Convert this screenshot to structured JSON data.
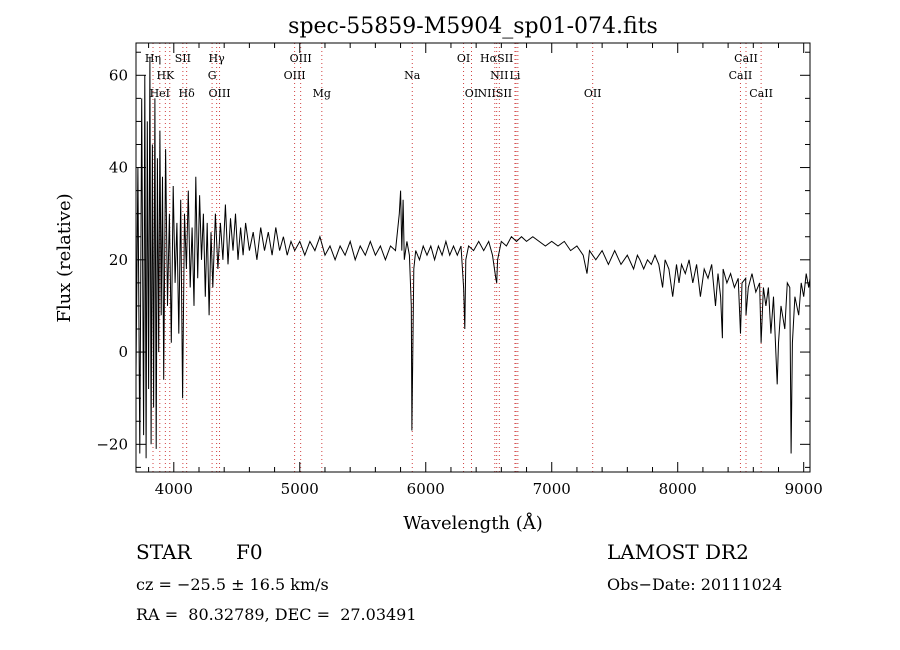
{
  "chart_data": {
    "type": "line",
    "title": "spec-55859-M5904_sp01-074.fits",
    "xlabel": "Wavelength (Å)",
    "ylabel": "Flux (relative)",
    "xlim": [
      3700,
      9050
    ],
    "ylim": [
      -26,
      67
    ],
    "x_ticks": [
      4000,
      5000,
      6000,
      7000,
      8000,
      9000
    ],
    "y_ticks": [
      -20,
      0,
      20,
      40,
      60
    ],
    "grid": false,
    "series": [
      {
        "points": [
          [
            3700,
            -5
          ],
          [
            3715,
            40
          ],
          [
            3730,
            -22
          ],
          [
            3745,
            55
          ],
          [
            3760,
            -18
          ],
          [
            3770,
            60
          ],
          [
            3780,
            -23
          ],
          [
            3790,
            50
          ],
          [
            3800,
            -8
          ],
          [
            3810,
            64
          ],
          [
            3820,
            -20
          ],
          [
            3830,
            45
          ],
          [
            3840,
            -12
          ],
          [
            3850,
            55
          ],
          [
            3860,
            -21
          ],
          [
            3870,
            42
          ],
          [
            3880,
            0
          ],
          [
            3890,
            48
          ],
          [
            3900,
            8
          ],
          [
            3910,
            38
          ],
          [
            3920,
            -6
          ],
          [
            3935,
            44
          ],
          [
            3950,
            10
          ],
          [
            3965,
            30
          ],
          [
            3980,
            2
          ],
          [
            3995,
            36
          ],
          [
            4010,
            15
          ],
          [
            4025,
            28
          ],
          [
            4040,
            4
          ],
          [
            4055,
            33
          ],
          [
            4070,
            -10
          ],
          [
            4085,
            30
          ],
          [
            4100,
            18
          ],
          [
            4115,
            35
          ],
          [
            4130,
            14
          ],
          [
            4145,
            27
          ],
          [
            4160,
            10
          ],
          [
            4175,
            38
          ],
          [
            4190,
            16
          ],
          [
            4205,
            34
          ],
          [
            4220,
            20
          ],
          [
            4235,
            30
          ],
          [
            4250,
            12
          ],
          [
            4265,
            28
          ],
          [
            4280,
            8
          ],
          [
            4295,
            26
          ],
          [
            4310,
            14
          ],
          [
            4330,
            30
          ],
          [
            4350,
            18
          ],
          [
            4370,
            28
          ],
          [
            4390,
            20
          ],
          [
            4410,
            32
          ],
          [
            4430,
            19
          ],
          [
            4450,
            29
          ],
          [
            4470,
            22
          ],
          [
            4490,
            30
          ],
          [
            4510,
            20
          ],
          [
            4530,
            27
          ],
          [
            4550,
            21
          ],
          [
            4570,
            28
          ],
          [
            4600,
            22
          ],
          [
            4630,
            26
          ],
          [
            4660,
            20
          ],
          [
            4690,
            27
          ],
          [
            4720,
            22
          ],
          [
            4750,
            26
          ],
          [
            4780,
            21
          ],
          [
            4810,
            27
          ],
          [
            4840,
            22
          ],
          [
            4870,
            25
          ],
          [
            4900,
            21
          ],
          [
            4930,
            24
          ],
          [
            4960,
            22
          ],
          [
            5000,
            24
          ],
          [
            5040,
            21
          ],
          [
            5080,
            24
          ],
          [
            5120,
            22
          ],
          [
            5160,
            25
          ],
          [
            5200,
            21
          ],
          [
            5240,
            23
          ],
          [
            5280,
            20
          ],
          [
            5320,
            23
          ],
          [
            5360,
            21
          ],
          [
            5400,
            24
          ],
          [
            5440,
            20
          ],
          [
            5480,
            23
          ],
          [
            5520,
            21
          ],
          [
            5560,
            24
          ],
          [
            5600,
            21
          ],
          [
            5640,
            23
          ],
          [
            5680,
            20
          ],
          [
            5720,
            23
          ],
          [
            5760,
            22
          ],
          [
            5790,
            30
          ],
          [
            5800,
            35
          ],
          [
            5810,
            22
          ],
          [
            5820,
            33
          ],
          [
            5830,
            20
          ],
          [
            5850,
            24
          ],
          [
            5870,
            21
          ],
          [
            5885,
            10
          ],
          [
            5890,
            -17
          ],
          [
            5896,
            -2
          ],
          [
            5905,
            18
          ],
          [
            5920,
            22
          ],
          [
            5950,
            20
          ],
          [
            5980,
            23
          ],
          [
            6010,
            21
          ],
          [
            6040,
            23
          ],
          [
            6070,
            20
          ],
          [
            6100,
            23
          ],
          [
            6130,
            21
          ],
          [
            6160,
            24
          ],
          [
            6190,
            21
          ],
          [
            6220,
            23
          ],
          [
            6250,
            21
          ],
          [
            6280,
            23
          ],
          [
            6300,
            14
          ],
          [
            6310,
            5
          ],
          [
            6318,
            20
          ],
          [
            6340,
            23
          ],
          [
            6380,
            22
          ],
          [
            6420,
            24
          ],
          [
            6460,
            22
          ],
          [
            6500,
            24
          ],
          [
            6530,
            21
          ],
          [
            6556,
            16
          ],
          [
            6563,
            15
          ],
          [
            6570,
            20
          ],
          [
            6600,
            24
          ],
          [
            6640,
            23
          ],
          [
            6680,
            25
          ],
          [
            6720,
            24
          ],
          [
            6760,
            25
          ],
          [
            6800,
            24
          ],
          [
            6850,
            25
          ],
          [
            6900,
            24
          ],
          [
            6950,
            23
          ],
          [
            7000,
            24
          ],
          [
            7050,
            23
          ],
          [
            7100,
            24
          ],
          [
            7150,
            22
          ],
          [
            7200,
            23
          ],
          [
            7250,
            21
          ],
          [
            7280,
            17
          ],
          [
            7300,
            22
          ],
          [
            7350,
            20
          ],
          [
            7400,
            22
          ],
          [
            7450,
            19
          ],
          [
            7500,
            22
          ],
          [
            7550,
            19
          ],
          [
            7600,
            21
          ],
          [
            7650,
            18
          ],
          [
            7680,
            21
          ],
          [
            7700,
            20
          ],
          [
            7730,
            18
          ],
          [
            7760,
            20
          ],
          [
            7790,
            19
          ],
          [
            7820,
            21
          ],
          [
            7850,
            19
          ],
          [
            7880,
            14
          ],
          [
            7900,
            20
          ],
          [
            7930,
            18
          ],
          [
            7960,
            12
          ],
          [
            7990,
            19
          ],
          [
            8010,
            15
          ],
          [
            8030,
            19
          ],
          [
            8060,
            17
          ],
          [
            8090,
            20
          ],
          [
            8120,
            15
          ],
          [
            8150,
            19
          ],
          [
            8180,
            12
          ],
          [
            8210,
            18
          ],
          [
            8240,
            16
          ],
          [
            8270,
            19
          ],
          [
            8300,
            10
          ],
          [
            8320,
            17
          ],
          [
            8340,
            12
          ],
          [
            8355,
            3
          ],
          [
            8360,
            18
          ],
          [
            8390,
            15
          ],
          [
            8420,
            17
          ],
          [
            8450,
            14
          ],
          [
            8480,
            16
          ],
          [
            8498,
            4
          ],
          [
            8510,
            15
          ],
          [
            8540,
            16
          ],
          [
            8542,
            8
          ],
          [
            8560,
            14
          ],
          [
            8590,
            17
          ],
          [
            8620,
            13
          ],
          [
            8650,
            15
          ],
          [
            8662,
            2
          ],
          [
            8680,
            14
          ],
          [
            8700,
            10
          ],
          [
            8720,
            14
          ],
          [
            8740,
            4
          ],
          [
            8760,
            12
          ],
          [
            8790,
            -7
          ],
          [
            8800,
            2
          ],
          [
            8820,
            10
          ],
          [
            8850,
            5
          ],
          [
            8870,
            15
          ],
          [
            8890,
            14
          ],
          [
            8900,
            -22
          ],
          [
            8910,
            2
          ],
          [
            8930,
            12
          ],
          [
            8960,
            8
          ],
          [
            8980,
            15
          ],
          [
            9000,
            12
          ],
          [
            9020,
            17
          ],
          [
            9040,
            14
          ],
          [
            9050,
            16
          ]
        ]
      }
    ],
    "line_markers": [
      {
        "label": "Hη",
        "wavelength": 3835,
        "row": 0
      },
      {
        "label": "HK",
        "wavelength": 3933,
        "row": 1
      },
      {
        "label": "HeI",
        "wavelength": 3889,
        "row": 2
      },
      {
        "label": "SII",
        "wavelength": 4072,
        "row": 0
      },
      {
        "label": "Hδ",
        "wavelength": 4102,
        "row": 2
      },
      {
        "label": "Hγ",
        "wavelength": 4340,
        "row": 0
      },
      {
        "label": "G",
        "wavelength": 4304,
        "row": 1
      },
      {
        "label": "OIII",
        "wavelength": 4363,
        "row": 2
      },
      {
        "label": "OIII",
        "wavelength": 5007,
        "row": 0
      },
      {
        "label": "OIII",
        "wavelength": 4959,
        "row": 1
      },
      {
        "label": "Mg",
        "wavelength": 5175,
        "row": 2
      },
      {
        "label": "Na",
        "wavelength": 5893,
        "row": 1
      },
      {
        "label": "OI",
        "wavelength": 6300,
        "row": 0
      },
      {
        "label": "OI",
        "wavelength": 6363,
        "row": 2
      },
      {
        "label": "HαSII",
        "wavelength": 6563,
        "row": 0
      },
      {
        "label": "NII",
        "wavelength": 6584,
        "row": 1
      },
      {
        "label": "NIISII",
        "wavelength": 6548,
        "row": 2
      },
      {
        "label": "Li",
        "wavelength": 6708,
        "row": 1
      },
      {
        "label": "OII",
        "wavelength": 7325,
        "row": 2
      },
      {
        "label": "CaII",
        "wavelength": 8542,
        "row": 0
      },
      {
        "label": "CaII",
        "wavelength": 8498,
        "row": 1
      },
      {
        "label": "CaII",
        "wavelength": 8662,
        "row": 2
      }
    ],
    "marker_wavelengths": [
      3835,
      3889,
      3933,
      3968,
      4072,
      4102,
      4304,
      4340,
      4363,
      4959,
      5007,
      5175,
      5893,
      6300,
      6363,
      6548,
      6563,
      6584,
      6708,
      6717,
      6731,
      7325,
      8498,
      8542,
      8662
    ]
  },
  "info": {
    "object_type": "STAR",
    "subclass": "F0",
    "survey": "LAMOST DR2",
    "velocity": "cz = −25.5 ± 16.5 km/s",
    "obs_date": "Obs−Date: 20111024",
    "coords": "RA =  80.32789, DEC =  27.03491"
  }
}
